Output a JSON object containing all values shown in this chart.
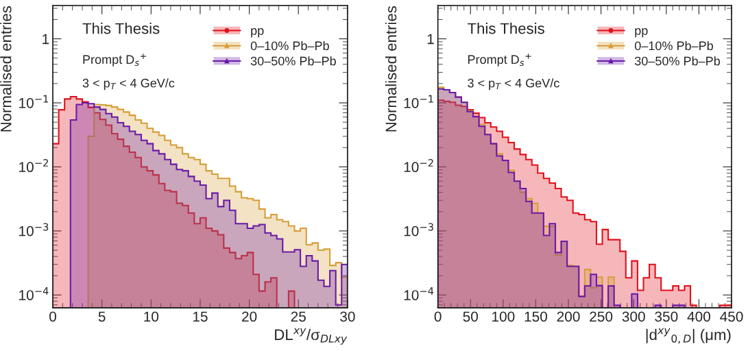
{
  "chart_data": [
    {
      "type": "histogram",
      "xlabel": "DL$^{xy}$/σ$_{DLxy}$",
      "ylabel": "Normalised entries",
      "annotations": [
        "This Thesis",
        "Prompt D$_{s}$$^{+}$",
        "3 < p$_{T}$ < 4 GeV/c"
      ],
      "log": "y",
      "legend": "top right",
      "bins": [
        0,
        0.6,
        1.2,
        1.8,
        2.4,
        3,
        3.6,
        4.2,
        4.8,
        5.4,
        6,
        6.6,
        7.2,
        7.8,
        8.4,
        9,
        9.6,
        10.2,
        10.8,
        11.4,
        12,
        12.6,
        13.2,
        13.8,
        14.4,
        15,
        15.6,
        16.2,
        16.8,
        17.4,
        18,
        18.6,
        19.2,
        19.8,
        20.4,
        21,
        21.6,
        22.2,
        22.8,
        23.4,
        24,
        24.6,
        25.2,
        25.8,
        26.4,
        27,
        27.6,
        28.2,
        28.8,
        29.4,
        30
      ],
      "xlim": [
        0,
        30
      ],
      "xticks": [
        0,
        5,
        10,
        15,
        20,
        25,
        30
      ],
      "ylim": [
        6.3e-05,
        3.3
      ],
      "yticks": [
        {
          "value": 0.0001,
          "label": "10$^{−4}$"
        },
        {
          "value": 0.001,
          "label": "10$^{−3}$"
        },
        {
          "value": 0.01,
          "label": "10$^{−2}$"
        },
        {
          "value": 0.1,
          "label": "10$^{−1}$"
        },
        1
      ],
      "series": [
        {
          "name": "pp",
          "color": "#e0101a",
          "marker": "circle",
          "values": [
            0.023,
            0.078,
            0.115,
            0.125,
            0.115,
            0.104,
            0.085,
            0.07,
            0.055,
            0.045,
            0.033,
            0.027,
            0.021,
            0.017,
            0.014,
            0.01,
            0.0087,
            0.0075,
            0.0055,
            0.0043,
            0.0041,
            0.0027,
            0.0025,
            0.0019,
            0.0013,
            0.0016,
            0.0011,
            0.001,
            0.00087,
            0.00054,
            0.00046,
            0.00037,
            0.00041,
            0.00046,
            0.00021,
            0.000115,
            0.00016,
            0.000185,
            null,
            null,
            0.000115,
            null,
            null,
            null,
            null,
            null,
            null,
            null,
            null,
            null
          ]
        },
        {
          "name": "0–10% Pb–Pb",
          "color": "#d69e38",
          "marker": "triangle",
          "values": [
            null,
            null,
            null,
            null,
            null,
            null,
            0.03,
            0.094,
            0.093,
            0.091,
            0.086,
            0.079,
            0.072,
            0.064,
            0.054,
            0.048,
            0.04,
            0.035,
            0.031,
            0.026,
            0.022,
            0.02,
            0.016,
            0.014,
            0.013,
            0.011,
            0.0087,
            0.0077,
            0.0066,
            0.0066,
            0.005,
            0.0041,
            0.0033,
            0.0032,
            0.003,
            0.0022,
            0.0016,
            0.0018,
            0.0015,
            0.0014,
            0.0012,
            0.001,
            0.0011,
            0.00061,
            0.00065,
            0.0005,
            0.00052,
            0.00029,
            0.00032,
            0.00019
          ]
        },
        {
          "name": "30–50% Pb–Pb",
          "color": "#6a1aa8",
          "marker": "triangle",
          "values": [
            null,
            null,
            null,
            0.054,
            0.094,
            0.1,
            0.097,
            0.086,
            0.079,
            0.068,
            0.06,
            0.049,
            0.043,
            0.036,
            0.032,
            0.026,
            0.023,
            0.018,
            0.016,
            0.013,
            0.011,
            0.0091,
            0.0087,
            0.0071,
            0.006,
            0.0052,
            0.0032,
            0.0039,
            0.0024,
            0.003,
            0.0021,
            0.0013,
            0.0013,
            0.0011,
            0.0012,
            0.00126,
            0.00093,
            0.00085,
            0.00075,
            0.00047,
            0.00047,
            0.00051,
            0.00028,
            0.00041,
            0.00034,
            0.00017,
            0.000136,
            0.00024,
            7e-05,
            0.0003
          ]
        }
      ]
    },
    {
      "type": "histogram",
      "xlabel": "|d$^{xy}$$_{0,D}$| (μm)",
      "ylabel": "Normalised entries",
      "annotations": [
        "This Thesis",
        "Prompt D$_{s}$$^{+}$",
        "3 < p$_{T}$ < 4 GeV/c"
      ],
      "log": "y",
      "legend": "top right",
      "bins": [
        0,
        9,
        18,
        27,
        36,
        45,
        54,
        63,
        72,
        81,
        90,
        99,
        108,
        117,
        126,
        135,
        144,
        153,
        162,
        171,
        180,
        189,
        198,
        207,
        216,
        225,
        234,
        243,
        252,
        261,
        270,
        279,
        288,
        297,
        306,
        315,
        324,
        333,
        342,
        351,
        360,
        369,
        378,
        387,
        396,
        405,
        414,
        423,
        432,
        441,
        450
      ],
      "xlim": [
        0,
        450
      ],
      "xticks": [
        0,
        50,
        100,
        150,
        200,
        250,
        300,
        350,
        400,
        450
      ],
      "ylim": [
        6.3e-05,
        3.3
      ],
      "yticks": [
        {
          "value": 0.0001,
          "label": "10$^{−4}$"
        },
        {
          "value": 0.001,
          "label": "10$^{−3}$"
        },
        {
          "value": 0.01,
          "label": "10$^{−2}$"
        },
        {
          "value": 0.1,
          "label": "10$^{−1}$"
        },
        1
      ],
      "series": [
        {
          "name": "pp",
          "color": "#e0101a",
          "marker": "circle",
          "values": [
            0.11,
            0.106,
            0.102,
            0.092,
            0.088,
            0.078,
            0.069,
            0.059,
            0.049,
            0.042,
            0.036,
            0.029,
            0.024,
            0.019,
            0.0156,
            0.013,
            0.0107,
            0.008,
            0.0066,
            0.0056,
            0.0046,
            0.0034,
            0.003,
            0.0019,
            0.0018,
            0.0015,
            0.0014,
            0.00062,
            0.00105,
            0.00073,
            0.00073,
            0.00048,
            0.000185,
            0.00034,
            0.000118,
            0.000185,
            0.0003,
            0.000185,
            0.000118,
            0.000118,
            0.000139,
            0.000118,
            0.000139,
            6.9e-05,
            null,
            null,
            null,
            null,
            6.9e-05,
            6.9e-05
          ]
        },
        {
          "name": "0–10% Pb–Pb",
          "color": "#d69e38",
          "marker": "triangle",
          "values": [
            0.175,
            0.16,
            0.145,
            0.123,
            0.102,
            0.075,
            0.061,
            0.046,
            0.032,
            0.023,
            0.016,
            0.0126,
            0.0089,
            0.006,
            0.004,
            0.0032,
            0.0027,
            0.0019,
            0.00118,
            0.00118,
            0.00042,
            0.00069,
            0.00029,
            0.00028,
            9.5e-05,
            0.00025,
            0.00013,
            0.00019,
            null,
            0.00019,
            null,
            null,
            null,
            null,
            null,
            null,
            null,
            null,
            null,
            null,
            null,
            null,
            null,
            null,
            null,
            null,
            null,
            null,
            null,
            null
          ]
        },
        {
          "name": "30–50% Pb–Pb",
          "color": "#6a1aa8",
          "marker": "triangle",
          "values": [
            0.165,
            0.16,
            0.145,
            0.123,
            0.102,
            0.073,
            0.061,
            0.043,
            0.032,
            0.023,
            0.0148,
            0.0126,
            0.0082,
            0.006,
            0.0046,
            0.0029,
            0.0019,
            0.0019,
            0.00085,
            0.0013,
            0.00046,
            0.00069,
            0.00028,
            0.00028,
            9.5e-05,
            0.000139,
            0.00021,
            0.00014,
            null,
            0.000139,
            6.9e-05,
            null,
            null,
            0.000104,
            null,
            null,
            null,
            6.9e-05,
            null,
            null,
            6.9e-05,
            6.9e-05,
            null,
            null,
            null,
            null,
            null,
            null,
            null,
            null
          ]
        }
      ]
    }
  ]
}
